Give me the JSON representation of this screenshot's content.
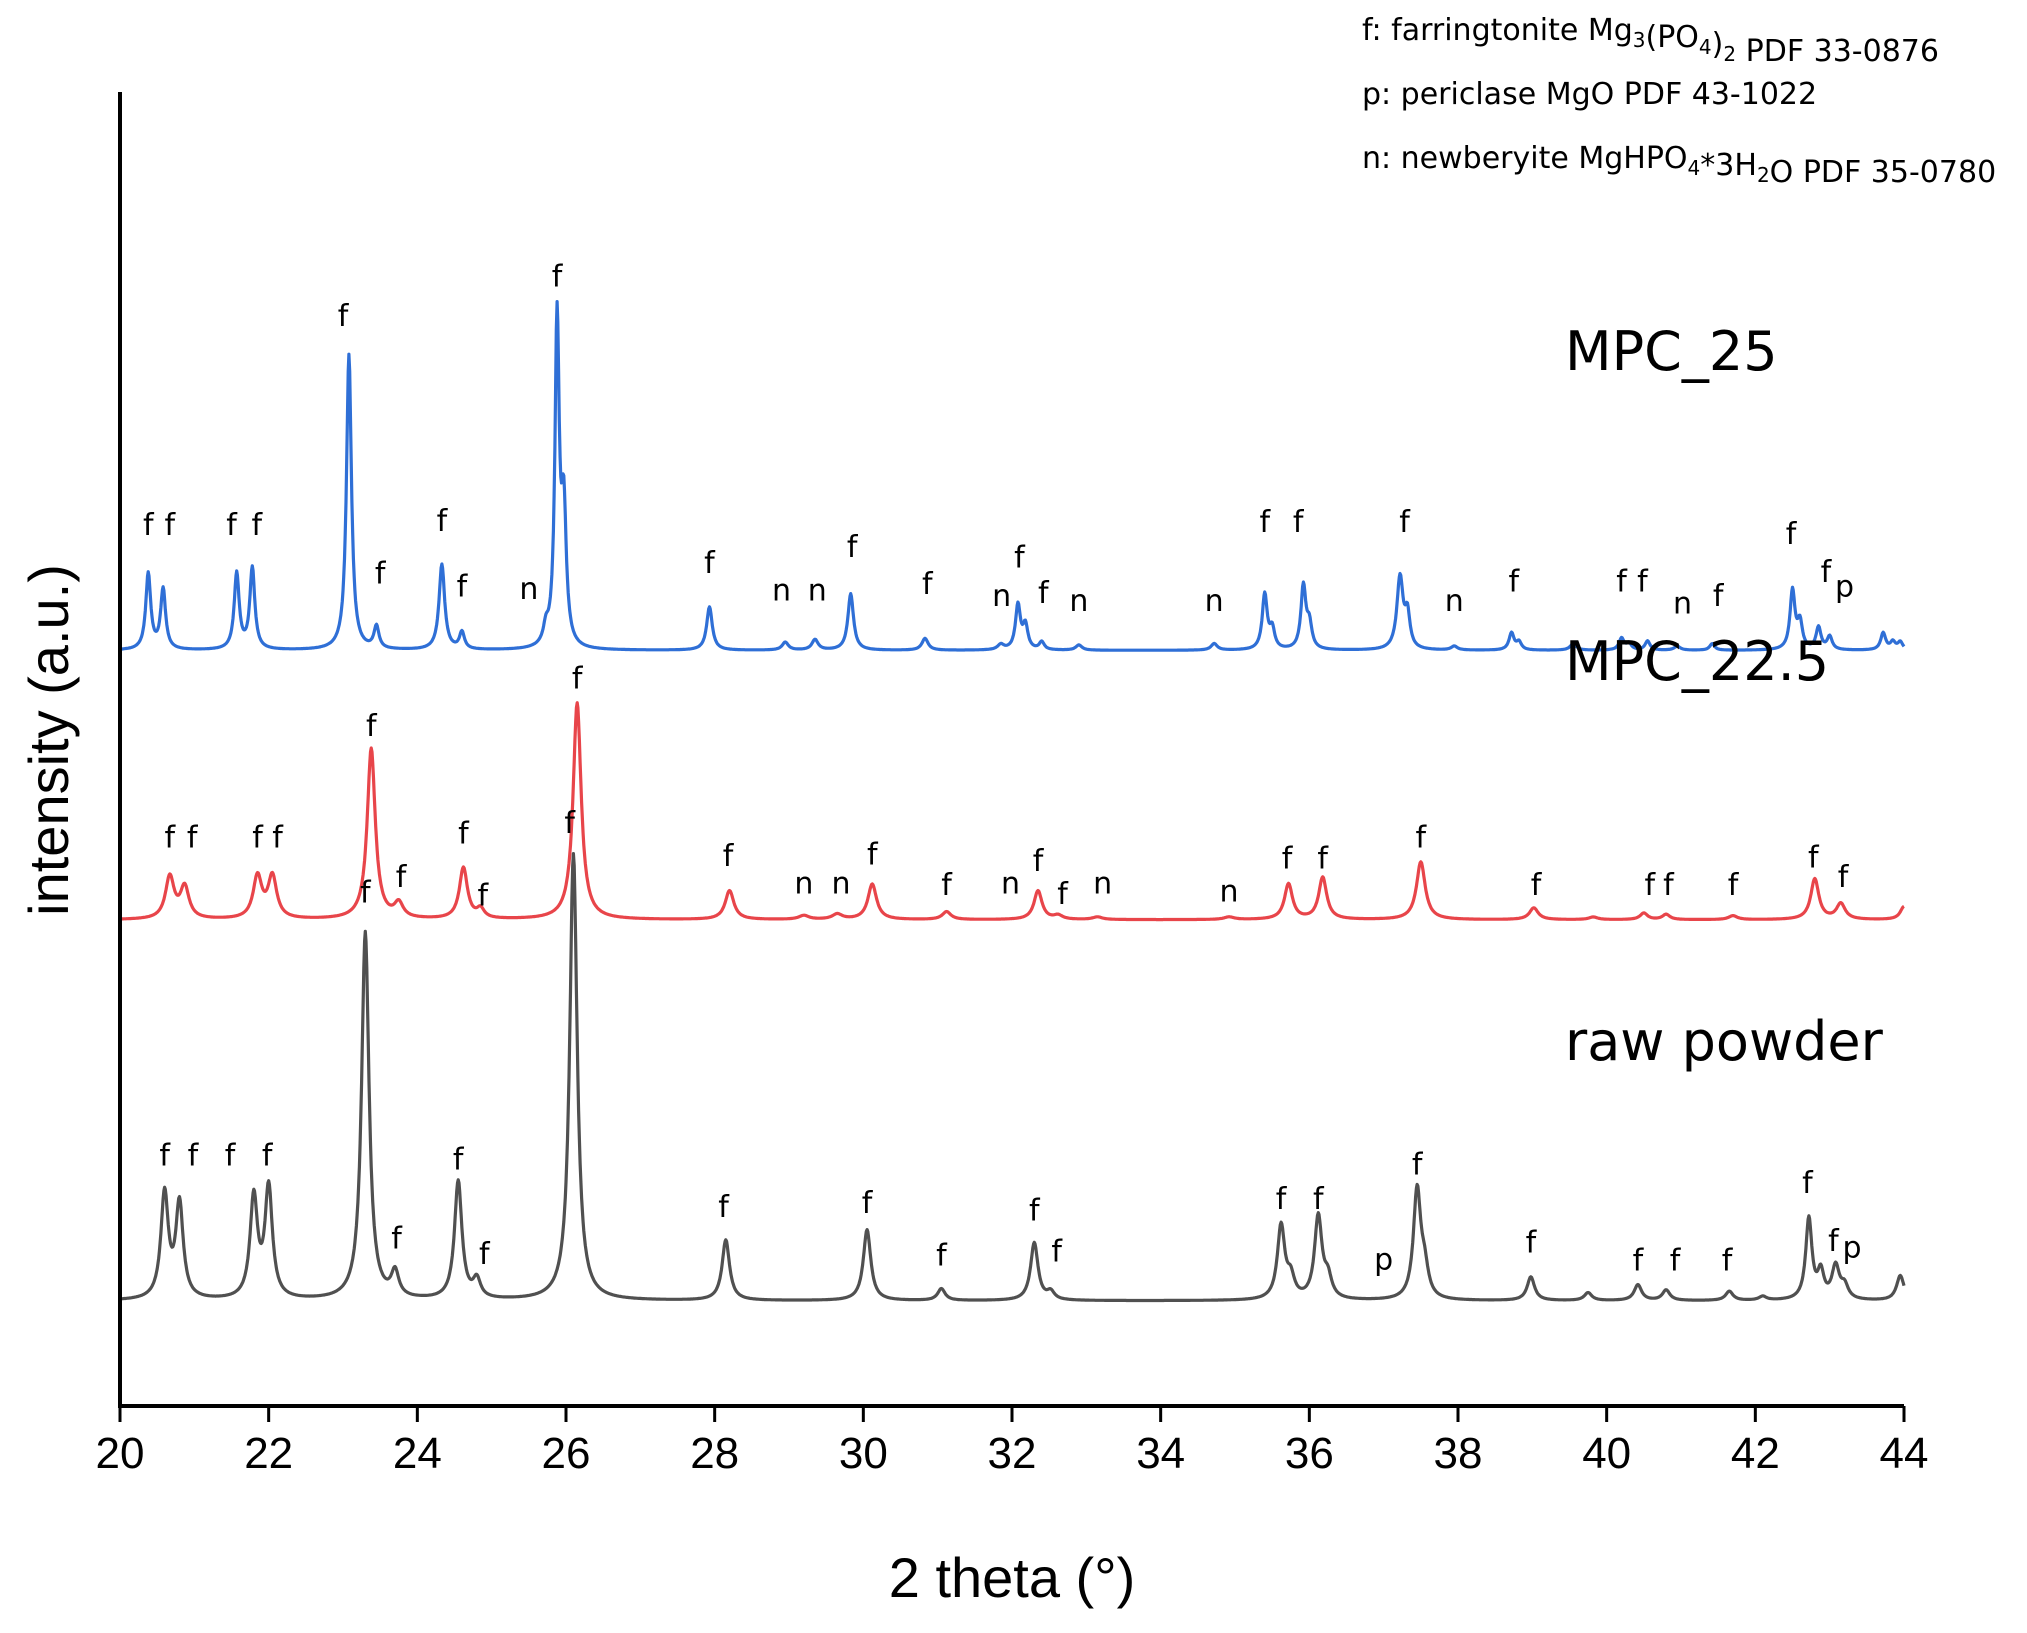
{
  "chart_data": {
    "type": "line",
    "title": "",
    "xlabel": "2 theta (°)",
    "ylabel": "intensity (a.u.)",
    "xlim": [
      20,
      44
    ],
    "xticks": [
      20,
      22,
      24,
      26,
      28,
      30,
      32,
      34,
      36,
      38,
      40,
      42,
      44
    ],
    "ylim": [
      0,
      1.0
    ],
    "legend": {
      "placement": "top-right",
      "entries": [
        {
          "parts": [
            {
              "t": "f: farringtonite Mg"
            },
            {
              "t": "3",
              "sub": true
            },
            {
              "t": "(PO"
            },
            {
              "t": "4",
              "sub": true
            },
            {
              "t": ")"
            },
            {
              "t": "2",
              "sub": true
            },
            {
              "t": " PDF 33-0876"
            }
          ]
        },
        {
          "parts": [
            {
              "t": "p: periclase MgO PDF 43-1022"
            }
          ]
        },
        {
          "parts": [
            {
              "t": "n: newberyite MgHPO"
            },
            {
              "t": "4",
              "sub": true
            },
            {
              "t": "*3H"
            },
            {
              "t": "2",
              "sub": true
            },
            {
              "t": "O PDF 35-0780"
            }
          ]
        }
      ]
    },
    "series": [
      {
        "name": "MPC_25",
        "label": "MPC_25",
        "color": "#2f6fd6",
        "offset": 0.575,
        "peaks": [
          [
            20.38,
            0.058,
            0.04
          ],
          [
            20.58,
            0.046,
            0.04
          ],
          [
            21.57,
            0.058,
            0.04
          ],
          [
            21.78,
            0.062,
            0.04
          ],
          [
            23.08,
            0.225,
            0.04
          ],
          [
            23.45,
            0.017,
            0.04
          ],
          [
            24.33,
            0.065,
            0.045
          ],
          [
            24.6,
            0.013,
            0.04
          ],
          [
            25.73,
            0.012,
            0.04
          ],
          [
            25.88,
            0.248,
            0.035
          ],
          [
            25.97,
            0.1,
            0.04
          ],
          [
            27.93,
            0.033,
            0.045
          ],
          [
            28.95,
            0.006,
            0.05
          ],
          [
            29.35,
            0.008,
            0.05
          ],
          [
            29.83,
            0.043,
            0.045
          ],
          [
            30.83,
            0.009,
            0.05
          ],
          [
            31.85,
            0.004,
            0.05
          ],
          [
            32.08,
            0.034,
            0.04
          ],
          [
            32.18,
            0.018,
            0.04
          ],
          [
            32.4,
            0.006,
            0.04
          ],
          [
            32.9,
            0.004,
            0.05
          ],
          [
            34.72,
            0.005,
            0.05
          ],
          [
            35.4,
            0.042,
            0.04
          ],
          [
            35.5,
            0.015,
            0.04
          ],
          [
            35.92,
            0.048,
            0.04
          ],
          [
            36.0,
            0.018,
            0.04
          ],
          [
            37.22,
            0.055,
            0.05
          ],
          [
            37.32,
            0.025,
            0.04
          ],
          [
            37.95,
            0.003,
            0.05
          ],
          [
            38.72,
            0.013,
            0.04
          ],
          [
            38.82,
            0.006,
            0.04
          ],
          [
            39.55,
            0.005,
            0.05
          ],
          [
            40.2,
            0.009,
            0.04
          ],
          [
            40.3,
            0.005,
            0.04
          ],
          [
            40.55,
            0.007,
            0.04
          ],
          [
            40.95,
            0.003,
            0.05
          ],
          [
            41.42,
            0.005,
            0.04
          ],
          [
            42.5,
            0.045,
            0.04
          ],
          [
            42.6,
            0.02,
            0.04
          ],
          [
            42.85,
            0.017,
            0.04
          ],
          [
            43.0,
            0.01,
            0.04
          ],
          [
            43.72,
            0.013,
            0.04
          ],
          [
            43.85,
            0.006,
            0.04
          ],
          [
            43.95,
            0.006,
            0.04
          ]
        ],
        "annotations": [
          {
            "x": 20.38,
            "y": 0.663,
            "text": "f"
          },
          {
            "x": 20.67,
            "y": 0.663,
            "text": "f"
          },
          {
            "x": 21.5,
            "y": 0.663,
            "text": "f"
          },
          {
            "x": 21.84,
            "y": 0.663,
            "text": "f"
          },
          {
            "x": 23.0,
            "y": 0.822,
            "text": "f"
          },
          {
            "x": 23.5,
            "y": 0.626,
            "text": "f"
          },
          {
            "x": 24.33,
            "y": 0.666,
            "text": "f"
          },
          {
            "x": 24.6,
            "y": 0.616,
            "text": "f"
          },
          {
            "x": 25.5,
            "y": 0.614,
            "text": "n"
          },
          {
            "x": 25.88,
            "y": 0.852,
            "text": "f"
          },
          {
            "x": 27.93,
            "y": 0.634,
            "text": "f"
          },
          {
            "x": 28.9,
            "y": 0.613,
            "text": "n"
          },
          {
            "x": 29.38,
            "y": 0.613,
            "text": "n"
          },
          {
            "x": 29.85,
            "y": 0.646,
            "text": "f"
          },
          {
            "x": 30.86,
            "y": 0.618,
            "text": "f"
          },
          {
            "x": 31.86,
            "y": 0.609,
            "text": "n"
          },
          {
            "x": 32.1,
            "y": 0.638,
            "text": "f"
          },
          {
            "x": 32.42,
            "y": 0.611,
            "text": "f"
          },
          {
            "x": 32.9,
            "y": 0.605,
            "text": "n"
          },
          {
            "x": 34.72,
            "y": 0.605,
            "text": "n"
          },
          {
            "x": 35.4,
            "y": 0.665,
            "text": "f"
          },
          {
            "x": 35.85,
            "y": 0.665,
            "text": "f"
          },
          {
            "x": 37.28,
            "y": 0.665,
            "text": "f"
          },
          {
            "x": 37.95,
            "y": 0.605,
            "text": "n"
          },
          {
            "x": 38.75,
            "y": 0.62,
            "text": "f"
          },
          {
            "x": 40.2,
            "y": 0.62,
            "text": "f"
          },
          {
            "x": 40.48,
            "y": 0.62,
            "text": "f"
          },
          {
            "x": 41.02,
            "y": 0.603,
            "text": "n"
          },
          {
            "x": 41.5,
            "y": 0.609,
            "text": "f"
          },
          {
            "x": 42.48,
            "y": 0.656,
            "text": "f"
          },
          {
            "x": 42.95,
            "y": 0.627,
            "text": "f"
          },
          {
            "x": 43.2,
            "y": 0.616,
            "text": "p"
          }
        ]
      },
      {
        "name": "MPC_22.5",
        "label": "MPC_22.5",
        "color": "#e8454a",
        "offset": 0.37,
        "peaks": [
          [
            20.67,
            0.032,
            0.07
          ],
          [
            20.87,
            0.024,
            0.07
          ],
          [
            21.85,
            0.032,
            0.07
          ],
          [
            22.05,
            0.032,
            0.07
          ],
          [
            23.38,
            0.13,
            0.065
          ],
          [
            23.75,
            0.011,
            0.07
          ],
          [
            24.62,
            0.039,
            0.065
          ],
          [
            24.85,
            0.007,
            0.06
          ],
          [
            26.15,
            0.165,
            0.065
          ],
          [
            28.2,
            0.022,
            0.07
          ],
          [
            29.2,
            0.003,
            0.08
          ],
          [
            29.65,
            0.004,
            0.08
          ],
          [
            30.12,
            0.027,
            0.07
          ],
          [
            31.12,
            0.006,
            0.07
          ],
          [
            32.35,
            0.022,
            0.065
          ],
          [
            32.62,
            0.003,
            0.07
          ],
          [
            33.15,
            0.002,
            0.08
          ],
          [
            34.92,
            0.002,
            0.08
          ],
          [
            35.72,
            0.027,
            0.065
          ],
          [
            36.18,
            0.032,
            0.065
          ],
          [
            37.5,
            0.044,
            0.07
          ],
          [
            39.02,
            0.009,
            0.07
          ],
          [
            39.82,
            0.002,
            0.07
          ],
          [
            40.5,
            0.005,
            0.06
          ],
          [
            40.8,
            0.004,
            0.06
          ],
          [
            41.7,
            0.003,
            0.07
          ],
          [
            42.8,
            0.031,
            0.065
          ],
          [
            43.15,
            0.012,
            0.07
          ],
          [
            44.0,
            0.01,
            0.06
          ]
        ],
        "annotations": [
          {
            "x": 20.67,
            "y": 0.425,
            "text": "f"
          },
          {
            "x": 20.97,
            "y": 0.425,
            "text": "f"
          },
          {
            "x": 21.85,
            "y": 0.425,
            "text": "f"
          },
          {
            "x": 22.12,
            "y": 0.425,
            "text": "f"
          },
          {
            "x": 23.38,
            "y": 0.51,
            "text": "f"
          },
          {
            "x": 23.78,
            "y": 0.395,
            "text": "f"
          },
          {
            "x": 24.62,
            "y": 0.428,
            "text": "f"
          },
          {
            "x": 24.88,
            "y": 0.381,
            "text": "f"
          },
          {
            "x": 26.15,
            "y": 0.546,
            "text": "f"
          },
          {
            "x": 28.18,
            "y": 0.411,
            "text": "f"
          },
          {
            "x": 29.2,
            "y": 0.39,
            "text": "n"
          },
          {
            "x": 29.7,
            "y": 0.39,
            "text": "n"
          },
          {
            "x": 30.12,
            "y": 0.412,
            "text": "f"
          },
          {
            "x": 31.12,
            "y": 0.389,
            "text": "f"
          },
          {
            "x": 31.98,
            "y": 0.39,
            "text": "n"
          },
          {
            "x": 32.35,
            "y": 0.407,
            "text": "f"
          },
          {
            "x": 32.68,
            "y": 0.382,
            "text": "f"
          },
          {
            "x": 33.22,
            "y": 0.39,
            "text": "n"
          },
          {
            "x": 34.92,
            "y": 0.384,
            "text": "n"
          },
          {
            "x": 35.7,
            "y": 0.409,
            "text": "f"
          },
          {
            "x": 36.18,
            "y": 0.409,
            "text": "f"
          },
          {
            "x": 37.5,
            "y": 0.425,
            "text": "f"
          },
          {
            "x": 39.05,
            "y": 0.389,
            "text": "f"
          },
          {
            "x": 40.58,
            "y": 0.389,
            "text": "f"
          },
          {
            "x": 40.83,
            "y": 0.389,
            "text": "f"
          },
          {
            "x": 41.7,
            "y": 0.389,
            "text": "f"
          },
          {
            "x": 42.78,
            "y": 0.41,
            "text": "f"
          },
          {
            "x": 43.18,
            "y": 0.395,
            "text": "f"
          }
        ]
      },
      {
        "name": "raw powder",
        "label": "raw powder",
        "color": "#505050",
        "offset": 0.08,
        "peaks": [
          [
            20.6,
            0.08,
            0.06
          ],
          [
            20.8,
            0.072,
            0.06
          ],
          [
            21.8,
            0.077,
            0.06
          ],
          [
            22.0,
            0.084,
            0.06
          ],
          [
            23.3,
            0.28,
            0.06
          ],
          [
            23.7,
            0.019,
            0.06
          ],
          [
            24.55,
            0.09,
            0.06
          ],
          [
            24.8,
            0.014,
            0.06
          ],
          [
            26.1,
            0.34,
            0.06
          ],
          [
            28.15,
            0.046,
            0.06
          ],
          [
            30.05,
            0.054,
            0.06
          ],
          [
            31.05,
            0.009,
            0.06
          ],
          [
            32.3,
            0.044,
            0.06
          ],
          [
            32.52,
            0.006,
            0.06
          ],
          [
            35.62,
            0.056,
            0.06
          ],
          [
            35.75,
            0.015,
            0.06
          ],
          [
            36.12,
            0.063,
            0.06
          ],
          [
            36.25,
            0.015,
            0.06
          ],
          [
            37.45,
            0.083,
            0.06
          ],
          [
            37.55,
            0.02,
            0.06
          ],
          [
            38.98,
            0.018,
            0.06
          ],
          [
            39.75,
            0.006,
            0.06
          ],
          [
            40.42,
            0.012,
            0.06
          ],
          [
            40.8,
            0.008,
            0.06
          ],
          [
            41.65,
            0.007,
            0.06
          ],
          [
            42.1,
            0.003,
            0.06
          ],
          [
            42.72,
            0.062,
            0.05
          ],
          [
            42.88,
            0.02,
            0.05
          ],
          [
            43.08,
            0.025,
            0.06
          ],
          [
            43.2,
            0.01,
            0.06
          ],
          [
            43.95,
            0.019,
            0.06
          ]
        ],
        "annotations": [
          {
            "x": 20.6,
            "y": 0.183,
            "text": "f"
          },
          {
            "x": 20.98,
            "y": 0.183,
            "text": "f"
          },
          {
            "x": 21.48,
            "y": 0.183,
            "text": "f"
          },
          {
            "x": 21.98,
            "y": 0.183,
            "text": "f"
          },
          {
            "x": 23.3,
            "y": 0.383,
            "text": "f"
          },
          {
            "x": 23.72,
            "y": 0.12,
            "text": "f"
          },
          {
            "x": 24.55,
            "y": 0.18,
            "text": "f"
          },
          {
            "x": 24.9,
            "y": 0.108,
            "text": "f"
          },
          {
            "x": 26.05,
            "y": 0.436,
            "text": "f"
          },
          {
            "x": 28.12,
            "y": 0.144,
            "text": "f"
          },
          {
            "x": 30.05,
            "y": 0.147,
            "text": "f"
          },
          {
            "x": 31.05,
            "y": 0.107,
            "text": "f"
          },
          {
            "x": 32.3,
            "y": 0.141,
            "text": "f"
          },
          {
            "x": 32.6,
            "y": 0.11,
            "text": "f"
          },
          {
            "x": 35.62,
            "y": 0.15,
            "text": "f"
          },
          {
            "x": 36.12,
            "y": 0.15,
            "text": "f"
          },
          {
            "x": 37.0,
            "y": 0.104,
            "text": "p"
          },
          {
            "x": 37.45,
            "y": 0.176,
            "text": "f"
          },
          {
            "x": 38.98,
            "y": 0.117,
            "text": "f"
          },
          {
            "x": 40.42,
            "y": 0.103,
            "text": "f"
          },
          {
            "x": 40.92,
            "y": 0.103,
            "text": "f"
          },
          {
            "x": 41.62,
            "y": 0.103,
            "text": "f"
          },
          {
            "x": 42.7,
            "y": 0.162,
            "text": "f"
          },
          {
            "x": 43.05,
            "y": 0.118,
            "text": "f"
          },
          {
            "x": 43.3,
            "y": 0.113,
            "text": "p"
          }
        ]
      }
    ]
  }
}
